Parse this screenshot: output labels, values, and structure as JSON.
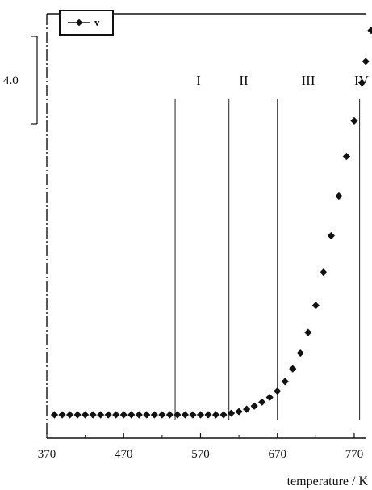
{
  "chart_data": {
    "type": "scatter",
    "title": "",
    "xlabel": "temperature / K",
    "ylabel": "",
    "xlim": [
      370,
      790
    ],
    "ylim": [
      0,
      5.2
    ],
    "x_ticks": [
      370,
      470,
      570,
      670,
      770
    ],
    "x_tick_labels": [
      "370",
      "470",
      "570",
      "670",
      "770"
    ],
    "grid": false,
    "legend_position": "top-left",
    "scale_bar": {
      "label": "4.0",
      "from": 3.5,
      "to": 4.75
    },
    "regions": [
      {
        "label": "I",
        "boundary_x": 537
      },
      {
        "label": "II",
        "boundary_x": 607
      },
      {
        "label": "III",
        "boundary_x": 670
      },
      {
        "label": "IV",
        "boundary_x": 777
      }
    ],
    "series": [
      {
        "name": "v",
        "color": "#111111",
        "marker": "diamond",
        "x": [
          380,
          390,
          400,
          410,
          420,
          430,
          440,
          450,
          460,
          470,
          480,
          490,
          500,
          510,
          520,
          530,
          540,
          550,
          560,
          570,
          580,
          590,
          600,
          610,
          620,
          630,
          640,
          650,
          660,
          670,
          680,
          690,
          700,
          710,
          720,
          730,
          740,
          750,
          760,
          770,
          780,
          785,
          792
        ],
        "y": [
          0.0,
          0.0,
          0.0,
          0.0,
          0.0,
          0.0,
          0.0,
          0.0,
          0.0,
          0.0,
          0.0,
          0.0,
          0.0,
          0.0,
          0.0,
          0.0,
          0.0,
          0.0,
          0.0,
          0.0,
          0.0,
          0.0,
          0.0,
          0.02,
          0.04,
          0.07,
          0.11,
          0.16,
          0.22,
          0.3,
          0.42,
          0.58,
          0.78,
          1.04,
          1.38,
          1.8,
          2.26,
          2.76,
          3.26,
          3.71,
          4.19,
          4.46,
          4.85
        ]
      }
    ]
  }
}
